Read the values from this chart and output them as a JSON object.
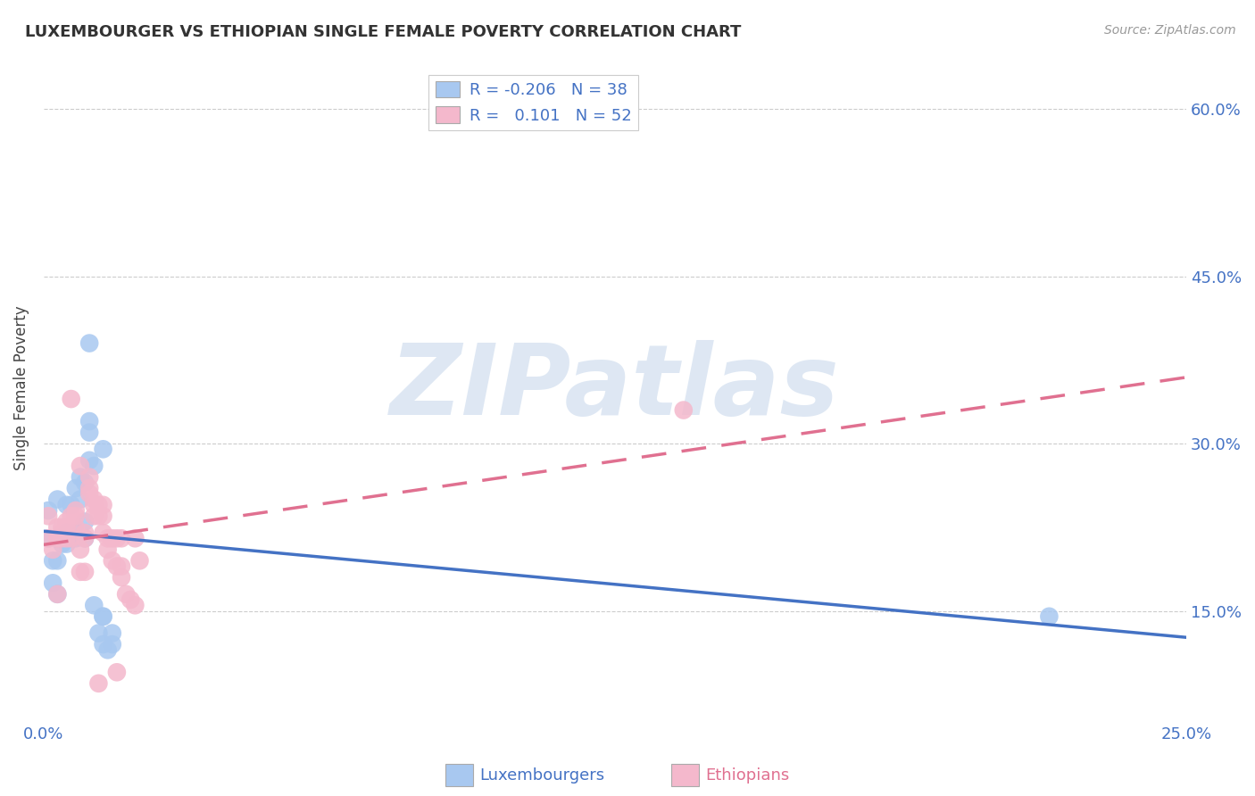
{
  "title": "LUXEMBOURGER VS ETHIOPIAN SINGLE FEMALE POVERTY CORRELATION CHART",
  "source": "Source: ZipAtlas.com",
  "ylabel": "Single Female Poverty",
  "xlabel_lux": "Luxembourgers",
  "xlabel_eth": "Ethiopians",
  "legend_lux": "R = -0.206   N = 38",
  "legend_eth": "R =   0.101   N = 52",
  "xmin": 0.0,
  "xmax": 0.25,
  "ymin": 0.05,
  "ymax": 0.65,
  "yticks": [
    0.15,
    0.3,
    0.45,
    0.6
  ],
  "ytick_labels": [
    "15.0%",
    "30.0%",
    "45.0%",
    "60.0%"
  ],
  "xticks": [
    0.0,
    0.05,
    0.1,
    0.15,
    0.2,
    0.25
  ],
  "xtick_labels": [
    "0.0%",
    "",
    "",
    "",
    "",
    "25.0%"
  ],
  "lux_color": "#a8c8f0",
  "eth_color": "#f4b8cc",
  "lux_line_color": "#4472c4",
  "eth_line_color": "#e07090",
  "background": "#ffffff",
  "grid_color": "#cccccc",
  "watermark": "ZIPatlas",
  "lux_x": [
    0.001,
    0.001,
    0.002,
    0.002,
    0.003,
    0.003,
    0.003,
    0.004,
    0.004,
    0.005,
    0.005,
    0.005,
    0.006,
    0.006,
    0.007,
    0.007,
    0.007,
    0.008,
    0.008,
    0.009,
    0.009,
    0.009,
    0.01,
    0.01,
    0.01,
    0.011,
    0.012,
    0.013,
    0.013,
    0.013,
    0.014,
    0.015,
    0.015,
    0.003,
    0.01,
    0.011,
    0.013,
    0.22
  ],
  "lux_y": [
    0.215,
    0.24,
    0.195,
    0.175,
    0.195,
    0.215,
    0.25,
    0.21,
    0.215,
    0.245,
    0.22,
    0.21,
    0.245,
    0.215,
    0.26,
    0.22,
    0.215,
    0.27,
    0.25,
    0.265,
    0.23,
    0.215,
    0.285,
    0.31,
    0.32,
    0.28,
    0.13,
    0.295,
    0.12,
    0.145,
    0.115,
    0.12,
    0.13,
    0.165,
    0.39,
    0.155,
    0.145,
    0.145
  ],
  "eth_x": [
    0.001,
    0.001,
    0.002,
    0.003,
    0.003,
    0.003,
    0.004,
    0.004,
    0.004,
    0.005,
    0.005,
    0.005,
    0.006,
    0.006,
    0.006,
    0.007,
    0.007,
    0.007,
    0.008,
    0.008,
    0.008,
    0.009,
    0.009,
    0.009,
    0.01,
    0.01,
    0.01,
    0.011,
    0.011,
    0.011,
    0.012,
    0.012,
    0.013,
    0.013,
    0.013,
    0.014,
    0.014,
    0.015,
    0.015,
    0.016,
    0.016,
    0.017,
    0.017,
    0.017,
    0.018,
    0.019,
    0.02,
    0.02,
    0.021,
    0.012,
    0.016,
    0.14
  ],
  "eth_y": [
    0.215,
    0.235,
    0.205,
    0.215,
    0.225,
    0.165,
    0.215,
    0.22,
    0.225,
    0.215,
    0.225,
    0.23,
    0.215,
    0.34,
    0.235,
    0.225,
    0.235,
    0.24,
    0.185,
    0.205,
    0.28,
    0.185,
    0.215,
    0.22,
    0.26,
    0.27,
    0.255,
    0.235,
    0.245,
    0.25,
    0.235,
    0.245,
    0.22,
    0.235,
    0.245,
    0.205,
    0.215,
    0.195,
    0.215,
    0.19,
    0.215,
    0.18,
    0.19,
    0.215,
    0.165,
    0.16,
    0.155,
    0.215,
    0.195,
    0.085,
    0.095,
    0.33
  ]
}
